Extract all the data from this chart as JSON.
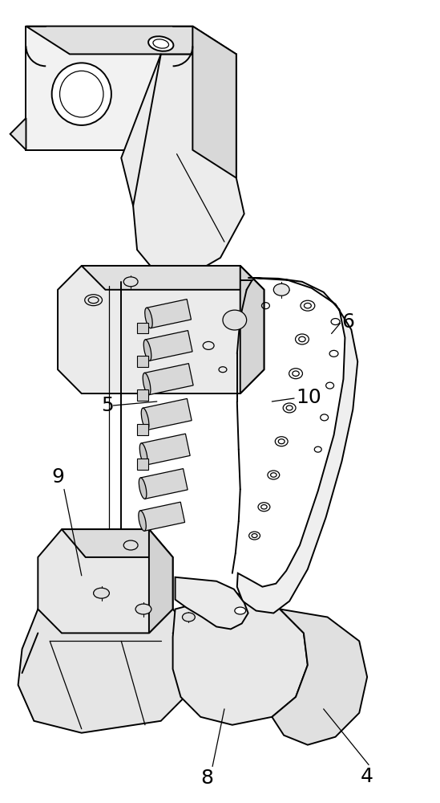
{
  "background_color": "#ffffff",
  "line_color": "#000000",
  "label_color": "#000000",
  "label_fontsize": 18,
  "fig_width": 5.49,
  "fig_height": 10.0,
  "dpi": 100
}
